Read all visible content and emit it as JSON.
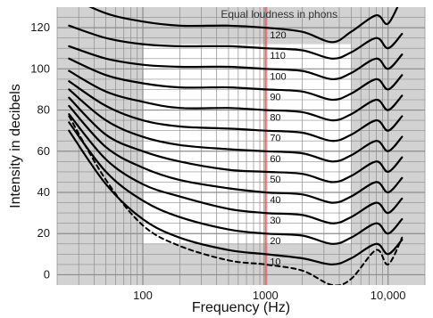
{
  "chart_data": {
    "type": "line",
    "title": "",
    "annotation": "Equal loudness in phons",
    "xlabel": "Frequency (Hz)",
    "ylabel": "Intensity in decibels",
    "x_scale": "log",
    "xlim": [
      20,
      20000
    ],
    "ylim": [
      -5,
      130
    ],
    "grid": true,
    "x_ticks": [
      {
        "value": 100,
        "label": "100"
      },
      {
        "value": 1000,
        "label": "1000"
      },
      {
        "value": 10000,
        "label": "10,000"
      }
    ],
    "y_ticks": [
      {
        "value": 0,
        "label": "0"
      },
      {
        "value": 20,
        "label": "20"
      },
      {
        "value": 40,
        "label": "40"
      },
      {
        "value": 60,
        "label": "60"
      },
      {
        "value": 80,
        "label": "80"
      },
      {
        "value": 100,
        "label": "100"
      },
      {
        "value": 120,
        "label": "120"
      }
    ],
    "reference_line": {
      "x": 1000,
      "color": "#e04040"
    },
    "colors": {
      "plot_background": "#d2d2d2",
      "band_background": "#ffffff",
      "grid": "#8c8c8c",
      "curve": "#000000",
      "threshold": "#000000",
      "label_1000": "#d42020"
    },
    "x": [
      25,
      50,
      100,
      200,
      500,
      1000,
      2000,
      3500,
      5000,
      8000,
      10000,
      13000
    ],
    "series": [
      {
        "name": "10",
        "style": "solid",
        "values": [
          70,
          44,
          27,
          18,
          12,
          10,
          8,
          5,
          8,
          15,
          10,
          17
        ]
      },
      {
        "name": "20",
        "style": "solid",
        "values": [
          74,
          50,
          36,
          28,
          22,
          20,
          19,
          15,
          18,
          25,
          20,
          27
        ]
      },
      {
        "name": "30",
        "style": "solid",
        "values": [
          78,
          56,
          44,
          38,
          32,
          30,
          29,
          25,
          28,
          35,
          30,
          37
        ]
      },
      {
        "name": "40",
        "style": "solid",
        "values": [
          82,
          62,
          52,
          46,
          42,
          40,
          39,
          35,
          38,
          45,
          40,
          47
        ]
      },
      {
        "name": "50",
        "style": "solid",
        "values": [
          86,
          68,
          60,
          55,
          51,
          50,
          49,
          45,
          48,
          55,
          50,
          57
        ]
      },
      {
        "name": "60",
        "style": "solid",
        "values": [
          90,
          75,
          67,
          63,
          61,
          60,
          59,
          55,
          58,
          65,
          60,
          67
        ]
      },
      {
        "name": "70",
        "style": "solid",
        "values": [
          94,
          82,
          75,
          72,
          71,
          70,
          69,
          65,
          68,
          75,
          70,
          77
        ]
      },
      {
        "name": "80",
        "style": "solid",
        "values": [
          99,
          89,
          84,
          81,
          81,
          80,
          79,
          75,
          78,
          85,
          80,
          87
        ]
      },
      {
        "name": "90",
        "style": "solid",
        "values": [
          105,
          97,
          93,
          91,
          91,
          90,
          89,
          85,
          88,
          95,
          90,
          97
        ]
      },
      {
        "name": "100",
        "style": "solid",
        "values": [
          111,
          105,
          102,
          101,
          101,
          100,
          99,
          95,
          98,
          105,
          100,
          107
        ]
      },
      {
        "name": "110",
        "style": "solid",
        "values": [
          121,
          115,
          112,
          111,
          111,
          110,
          109,
          105,
          108,
          115,
          110,
          117
        ]
      },
      {
        "name": "120",
        "style": "solid",
        "values": [
          135,
          127,
          123,
          121,
          121,
          120,
          118,
          113,
          118,
          126,
          122,
          135
        ]
      },
      {
        "name": "",
        "style": "dashed",
        "values": [
          77,
          46,
          24,
          14,
          7,
          5,
          2,
          -5,
          -2,
          12,
          5,
          18
        ]
      }
    ]
  }
}
